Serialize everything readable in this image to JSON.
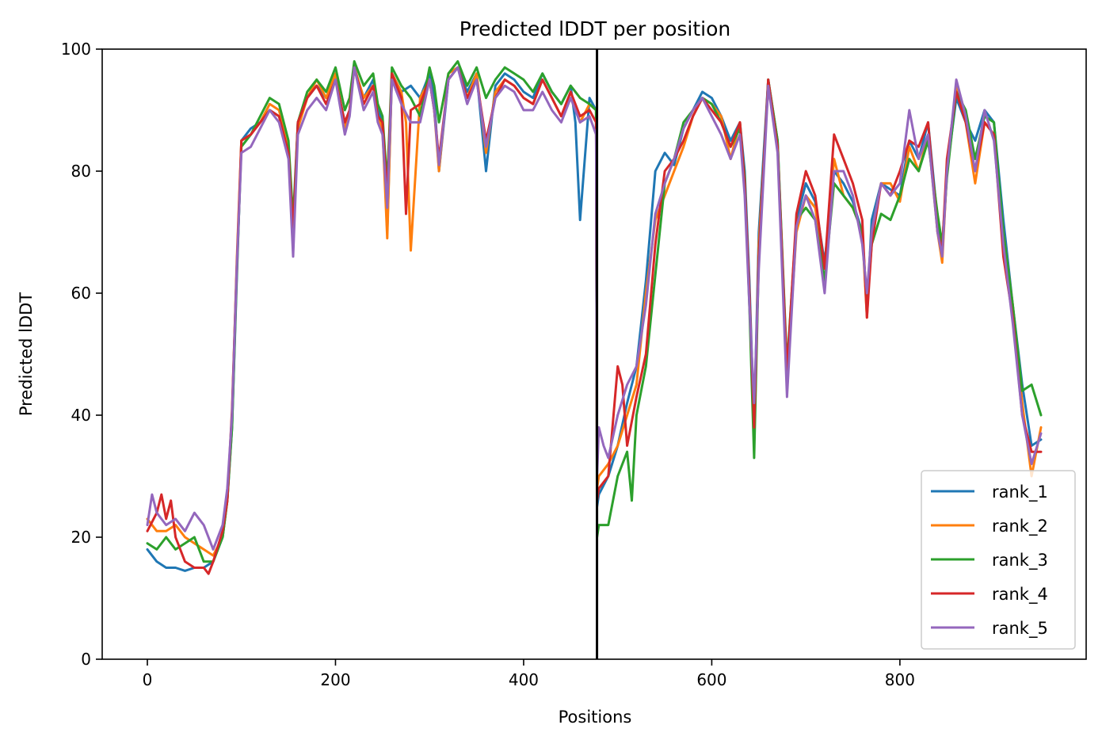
{
  "chart_data": {
    "type": "line",
    "title": "Predicted lDDT per position",
    "xlabel": "Positions",
    "ylabel": "Predicted lDDT",
    "xlim": [
      -48,
      998
    ],
    "ylim": [
      0,
      100
    ],
    "xticks": [
      0,
      200,
      400,
      600,
      800
    ],
    "yticks": [
      0,
      20,
      40,
      60,
      80,
      100
    ],
    "grid": false,
    "legend_position": "lower-right",
    "chain_break": 478,
    "series": [
      {
        "name": "rank_1",
        "color": "#1f77b4",
        "x": [
          0,
          10,
          20,
          30,
          40,
          50,
          60,
          70,
          80,
          85,
          90,
          95,
          100,
          110,
          120,
          130,
          140,
          150,
          155,
          160,
          170,
          180,
          190,
          200,
          210,
          215,
          220,
          230,
          240,
          245,
          250,
          255,
          260,
          270,
          280,
          290,
          300,
          305,
          310,
          320,
          330,
          340,
          350,
          360,
          370,
          380,
          390,
          400,
          410,
          420,
          430,
          440,
          450,
          455,
          460,
          470,
          477,
          478,
          480,
          490,
          500,
          510,
          520,
          530,
          540,
          550,
          560,
          570,
          580,
          590,
          600,
          610,
          620,
          630,
          635,
          640,
          645,
          650,
          660,
          670,
          680,
          690,
          700,
          710,
          720,
          730,
          740,
          750,
          760,
          765,
          770,
          780,
          790,
          800,
          810,
          820,
          830,
          840,
          845,
          850,
          860,
          870,
          880,
          890,
          900,
          910,
          920,
          930,
          940,
          950
        ],
        "y": [
          18,
          16,
          15,
          15,
          14.5,
          15,
          15,
          16,
          20,
          26,
          38,
          62,
          85,
          87,
          88,
          90,
          89,
          84,
          70,
          88,
          92,
          94,
          92,
          95,
          88,
          90,
          97,
          92,
          95,
          90,
          88,
          70,
          96,
          93,
          94,
          92,
          96,
          92,
          80,
          95,
          97,
          93,
          96,
          80,
          94,
          96,
          95,
          93,
          92,
          96,
          93,
          91,
          94,
          88,
          72,
          92,
          90,
          25,
          27,
          30,
          35,
          42,
          48,
          62,
          80,
          83,
          81,
          87,
          90,
          93,
          92,
          89,
          85,
          88,
          80,
          62,
          38,
          70,
          95,
          85,
          47,
          72,
          78,
          75,
          65,
          80,
          78,
          75,
          70,
          57,
          72,
          78,
          77,
          76,
          85,
          82,
          88,
          72,
          66,
          80,
          92,
          88,
          85,
          90,
          88,
          72,
          58,
          45,
          35,
          36
        ]
      },
      {
        "name": "rank_2",
        "color": "#ff7f0e",
        "x": [
          0,
          10,
          20,
          30,
          40,
          50,
          60,
          70,
          80,
          85,
          90,
          95,
          100,
          110,
          120,
          130,
          140,
          150,
          155,
          160,
          170,
          180,
          190,
          200,
          210,
          215,
          220,
          230,
          240,
          245,
          250,
          255,
          260,
          270,
          275,
          280,
          290,
          300,
          305,
          310,
          320,
          330,
          340,
          350,
          360,
          370,
          380,
          390,
          400,
          410,
          420,
          430,
          440,
          450,
          460,
          470,
          477,
          478,
          480,
          490,
          500,
          510,
          520,
          530,
          540,
          550,
          560,
          570,
          580,
          590,
          600,
          610,
          620,
          630,
          635,
          640,
          645,
          650,
          660,
          670,
          680,
          690,
          700,
          710,
          720,
          730,
          740,
          750,
          760,
          765,
          770,
          780,
          790,
          800,
          810,
          820,
          830,
          840,
          845,
          850,
          860,
          870,
          880,
          890,
          900,
          910,
          920,
          930,
          940,
          950
        ],
        "y": [
          23,
          21,
          21,
          22,
          20,
          19,
          18,
          17,
          20,
          26,
          40,
          65,
          85,
          86,
          88,
          91,
          90,
          84,
          69,
          87,
          92,
          95,
          92,
          96,
          87,
          90,
          97,
          92,
          94,
          89,
          87,
          69,
          96,
          93,
          88,
          67,
          92,
          95,
          90,
          80,
          96,
          97,
          92,
          96,
          83,
          93,
          95,
          94,
          92,
          91,
          95,
          92,
          89,
          93,
          88,
          91,
          90,
          28,
          30,
          32,
          35,
          40,
          45,
          60,
          72,
          76,
          80,
          84,
          89,
          92,
          91,
          89,
          82,
          88,
          78,
          60,
          36,
          68,
          94,
          84,
          46,
          70,
          76,
          74,
          64,
          82,
          76,
          74,
          70,
          56,
          70,
          78,
          78,
          75,
          84,
          80,
          86,
          70,
          65,
          80,
          94,
          88,
          78,
          88,
          86,
          70,
          58,
          42,
          30,
          38
        ]
      },
      {
        "name": "rank_3",
        "color": "#2ca02c",
        "x": [
          0,
          10,
          20,
          30,
          40,
          50,
          60,
          70,
          80,
          85,
          90,
          95,
          100,
          110,
          120,
          130,
          140,
          150,
          155,
          160,
          170,
          180,
          190,
          200,
          210,
          215,
          220,
          230,
          240,
          245,
          250,
          255,
          260,
          270,
          280,
          290,
          300,
          305,
          310,
          320,
          330,
          340,
          350,
          360,
          370,
          380,
          390,
          400,
          410,
          420,
          430,
          440,
          450,
          460,
          470,
          477,
          478,
          480,
          490,
          500,
          510,
          515,
          520,
          530,
          540,
          550,
          560,
          570,
          580,
          590,
          600,
          610,
          620,
          630,
          635,
          640,
          645,
          650,
          660,
          670,
          680,
          690,
          700,
          710,
          720,
          730,
          740,
          750,
          760,
          765,
          770,
          780,
          790,
          800,
          810,
          820,
          830,
          840,
          845,
          850,
          860,
          870,
          880,
          890,
          900,
          910,
          920,
          930,
          940,
          950
        ],
        "y": [
          19,
          18,
          20,
          18,
          19,
          20,
          16,
          16,
          20,
          26,
          38,
          63,
          84,
          86,
          89,
          92,
          91,
          85,
          72,
          88,
          93,
          95,
          93,
          97,
          90,
          92,
          98,
          94,
          96,
          91,
          89,
          78,
          97,
          94,
          92,
          89,
          97,
          94,
          88,
          96,
          98,
          94,
          97,
          92,
          95,
          97,
          96,
          95,
          93,
          96,
          93,
          91,
          94,
          92,
          91,
          90,
          20,
          22,
          22,
          30,
          34,
          26,
          40,
          48,
          63,
          78,
          82,
          88,
          90,
          92,
          91,
          88,
          84,
          87,
          79,
          58,
          33,
          66,
          95,
          85,
          48,
          72,
          74,
          72,
          62,
          78,
          76,
          74,
          70,
          58,
          68,
          73,
          72,
          76,
          82,
          80,
          85,
          73,
          68,
          79,
          93,
          90,
          82,
          89,
          88,
          70,
          58,
          44,
          45,
          40
        ]
      },
      {
        "name": "rank_4",
        "color": "#d62728",
        "x": [
          0,
          10,
          15,
          20,
          25,
          30,
          40,
          50,
          60,
          65,
          70,
          80,
          85,
          90,
          95,
          100,
          110,
          120,
          130,
          140,
          150,
          155,
          160,
          170,
          180,
          190,
          200,
          210,
          215,
          220,
          230,
          240,
          245,
          250,
          255,
          260,
          270,
          275,
          280,
          290,
          300,
          305,
          310,
          320,
          330,
          340,
          350,
          360,
          370,
          380,
          390,
          400,
          410,
          420,
          430,
          440,
          450,
          460,
          470,
          477,
          478,
          480,
          490,
          500,
          505,
          510,
          520,
          530,
          540,
          550,
          560,
          570,
          580,
          590,
          600,
          610,
          620,
          630,
          635,
          640,
          645,
          650,
          660,
          670,
          680,
          690,
          700,
          710,
          720,
          730,
          740,
          750,
          760,
          765,
          770,
          780,
          790,
          800,
          810,
          820,
          830,
          840,
          845,
          850,
          860,
          870,
          880,
          890,
          900,
          910,
          920,
          930,
          940,
          950
        ],
        "y": [
          21,
          24,
          27,
          23,
          26,
          20,
          16,
          15,
          15,
          14,
          16,
          21,
          26,
          41,
          64,
          85,
          86,
          88,
          90,
          89,
          83,
          70,
          88,
          92,
          94,
          91,
          95,
          88,
          90,
          97,
          91,
          94,
          89,
          88,
          76,
          96,
          92,
          73,
          90,
          91,
          95,
          90,
          82,
          95,
          97,
          92,
          95,
          85,
          92,
          95,
          94,
          92,
          91,
          95,
          92,
          89,
          93,
          89,
          90,
          88,
          26,
          28,
          30,
          48,
          45,
          35,
          43,
          50,
          68,
          80,
          82,
          85,
          89,
          92,
          90,
          88,
          84,
          88,
          78,
          60,
          38,
          66,
          95,
          84,
          47,
          73,
          80,
          76,
          64,
          86,
          82,
          78,
          72,
          56,
          68,
          78,
          76,
          80,
          85,
          84,
          88,
          70,
          67,
          82,
          93,
          88,
          80,
          88,
          86,
          66,
          56,
          40,
          34,
          34
        ]
      },
      {
        "name": "rank_5",
        "color": "#9467bd",
        "x": [
          0,
          5,
          10,
          20,
          30,
          40,
          50,
          60,
          70,
          80,
          85,
          90,
          95,
          100,
          110,
          120,
          130,
          140,
          150,
          155,
          160,
          170,
          180,
          190,
          200,
          210,
          215,
          220,
          230,
          240,
          245,
          250,
          255,
          260,
          270,
          280,
          290,
          300,
          305,
          310,
          320,
          330,
          340,
          350,
          360,
          370,
          380,
          390,
          400,
          410,
          420,
          430,
          440,
          450,
          460,
          470,
          477,
          478,
          480,
          485,
          490,
          500,
          510,
          520,
          530,
          540,
          550,
          560,
          570,
          580,
          590,
          600,
          610,
          620,
          630,
          635,
          640,
          645,
          650,
          660,
          670,
          680,
          690,
          700,
          710,
          720,
          730,
          740,
          750,
          760,
          765,
          770,
          780,
          790,
          800,
          810,
          820,
          830,
          840,
          845,
          850,
          860,
          870,
          880,
          890,
          900,
          910,
          920,
          930,
          940,
          950
        ],
        "y": [
          22,
          27,
          24,
          22,
          23,
          21,
          24,
          22,
          18,
          22,
          28,
          40,
          64,
          83,
          84,
          87,
          90,
          88,
          82,
          66,
          86,
          90,
          92,
          90,
          95,
          86,
          89,
          97,
          90,
          93,
          88,
          86,
          74,
          95,
          91,
          88,
          88,
          95,
          90,
          81,
          95,
          97,
          91,
          95,
          84,
          92,
          94,
          93,
          90,
          90,
          93,
          90,
          88,
          92,
          88,
          89,
          86,
          30,
          38,
          35,
          33,
          40,
          45,
          48,
          58,
          73,
          78,
          82,
          87,
          90,
          92,
          89,
          86,
          82,
          86,
          76,
          58,
          42,
          64,
          94,
          83,
          43,
          71,
          76,
          72,
          60,
          80,
          80,
          76,
          68,
          60,
          70,
          78,
          76,
          78,
          90,
          82,
          86,
          70,
          66,
          80,
          95,
          89,
          80,
          90,
          85,
          68,
          55,
          40,
          32,
          37
        ]
      }
    ]
  }
}
